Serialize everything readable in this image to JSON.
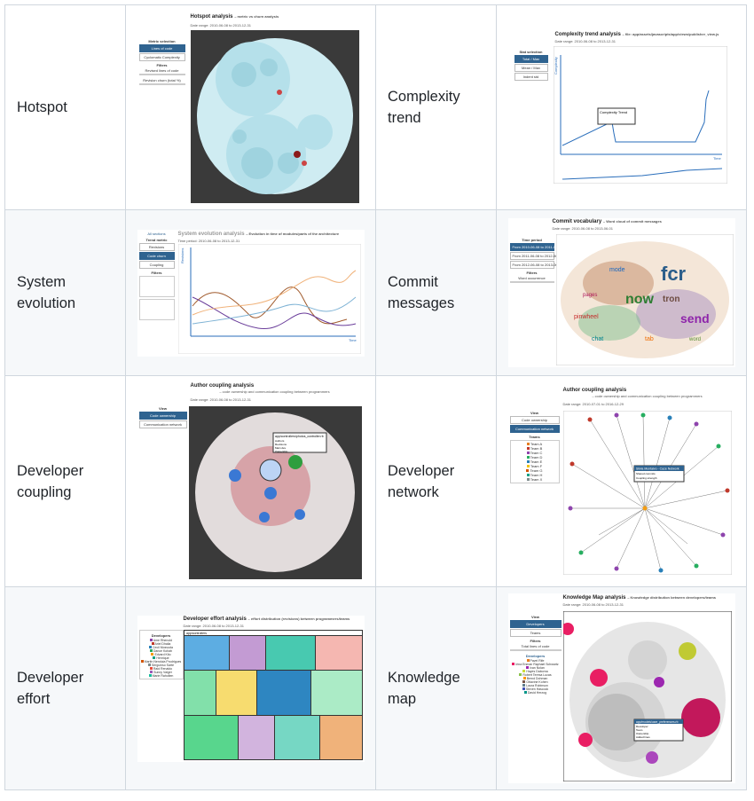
{
  "rows": [
    {
      "left": {
        "label_lines": [
          "Hotspot"
        ],
        "shot": {
          "title": "Hotspot analysis",
          "subtitle": "– metric vs churn analysis",
          "date": "Date range: 2010-06-08 to 2013-12-31",
          "panel_head": "Metric selection",
          "buttons": [
            "Lines of code",
            "Cyclomatic Complexity"
          ],
          "filters_head": "Filters",
          "filters": [
            "Revised lines of code",
            "Revision churn (total %)"
          ]
        }
      },
      "right": {
        "label_lines": [
          "Complexity",
          "trend"
        ],
        "shot": {
          "title": "Complexity trend analysis",
          "subtitle": "– file: app/assets/javascripts/app/views/publisher_view.js",
          "date": "Date range: 2010-06-08 to 2013-12-31",
          "panel_head": "Stat selection",
          "buttons": [
            "Total / Max",
            "Mean / Max",
            "Indent std"
          ],
          "tooltip_title": "Complexity Trend",
          "axis_y": "Complexity",
          "axis_x": "Time"
        }
      }
    },
    {
      "left": {
        "label_lines": [
          "System",
          "evolution"
        ],
        "shot": {
          "title": "System evolution analysis",
          "subtitle": "– Evolution in time of modules/parts of the architecture",
          "date": "Time period: 2010-06-08 to 2013-12-31",
          "side_head": "All sections",
          "panel_head": "Trend metric",
          "buttons": [
            "Revisions",
            "Code churn",
            "Coupling"
          ],
          "filters_head": "Filters",
          "axis_y": "Revisions",
          "axis_x": "Time"
        }
      },
      "right": {
        "label_lines": [
          "Commit",
          "messages"
        ],
        "shot": {
          "title": "Commit vocabulary",
          "subtitle": "– Word cloud of commit messages",
          "date": "Date range: 2010-06-08 to 2013-06-01",
          "panel_head": "Time period",
          "buttons": [
            "From 2010-06-08 to 2011-06-08",
            "From 2011-06-08 to 2012-06-08",
            "From 2012-06-08 to 2013-06-01"
          ],
          "filters_head": "Filters",
          "filters": [
            "Word occurrence"
          ],
          "words": [
            "fcr",
            "now",
            "tron",
            "send",
            "pinwheel",
            "chat",
            "tab",
            "mode",
            "word",
            "pages"
          ]
        }
      }
    },
    {
      "left": {
        "label_lines": [
          "Developer",
          "coupling"
        ],
        "shot": {
          "title": "Author coupling analysis",
          "subtitle": "– code ownership and communication coupling between programmers",
          "date": "Date range: 2010-06-08 to 2013-12-31",
          "panel_head": "View",
          "buttons": [
            "Code ownership",
            "Communication network"
          ],
          "tooltip_title": "app/controllers/photos_controller.rb",
          "tooltip_rows": [
            "Authors",
            "Revisions",
            "Main dev",
            "Ownership"
          ]
        }
      },
      "right": {
        "label_lines": [
          "Developer",
          "network"
        ],
        "shot": {
          "title": "Author coupling analysis",
          "subtitle": "– code ownership and communication coupling between programmers",
          "date": "Date range: 2010-07-01 to 2016-12-29",
          "panel_head": "View",
          "buttons": [
            "Code ownership",
            "Communication network"
          ],
          "teams_head": "Teams",
          "teams": [
            "Team A",
            "Team B",
            "Team C",
            "Team D",
            "Team E",
            "Team F",
            "Team G",
            "Team H",
            "Team X"
          ],
          "tooltip_title": "Silvia Montalvo - Caze Network",
          "tooltip_rows": [
            "Shared commits",
            "Coupling strength"
          ]
        }
      }
    },
    {
      "left": {
        "label_lines": [
          "Developer",
          "effort"
        ],
        "shot": {
          "title": "Developer effort analysis",
          "subtitle": "– effort distribution (revisions) between programmers/teams",
          "date": "Date range: 2010-06-08 to 2013-12-31",
          "legend_head": "Developers",
          "legend": [
            "Ame Rhenold",
            "Ariel Dhalia",
            "Cecil Mosvuda",
            "Dance Kohah",
            "Edvard Kito",
            "Henrique",
            "Martin Nenduia Prodrigues",
            "Serguinso Sarte",
            "Raid Renaldo",
            "Sunny Vaiger",
            "Marie Raholten"
          ],
          "treemap_root": "app/controllers"
        }
      },
      "right": {
        "label_lines": [
          "Knowledge",
          "map"
        ],
        "shot": {
          "title": "Knowledge Map analysis",
          "subtitle": "– Knowledge distribution between developers/teams",
          "date": "Date range: 2010-06-08 to 2013-12-31",
          "panel_head": "View",
          "buttons": [
            "Developers",
            "Teams"
          ],
          "filters_head": "Filters",
          "filters": [
            "Total lines of code"
          ],
          "dev_head": "Developers",
          "devs": [
            "Pavel Rife",
            "Irina Enman Raphael Schwartz",
            "Ivan Nolan",
            "Hayes Daborna",
            "Robert Teresa Lucas",
            "Bernd Dohman",
            "Ottavine Kohen",
            "Laura Robinson",
            "Steven Hascock",
            "David Herzog"
          ],
          "tooltip_title": "app/models/user_preferences.rb",
          "tooltip_rows": [
            "Developer",
            "Team",
            "Ownership",
            "Added lines"
          ]
        }
      }
    }
  ],
  "colors": {
    "border": "#d0d7de",
    "alt_row": "#f6f8fa",
    "accent": "#2f6390"
  }
}
